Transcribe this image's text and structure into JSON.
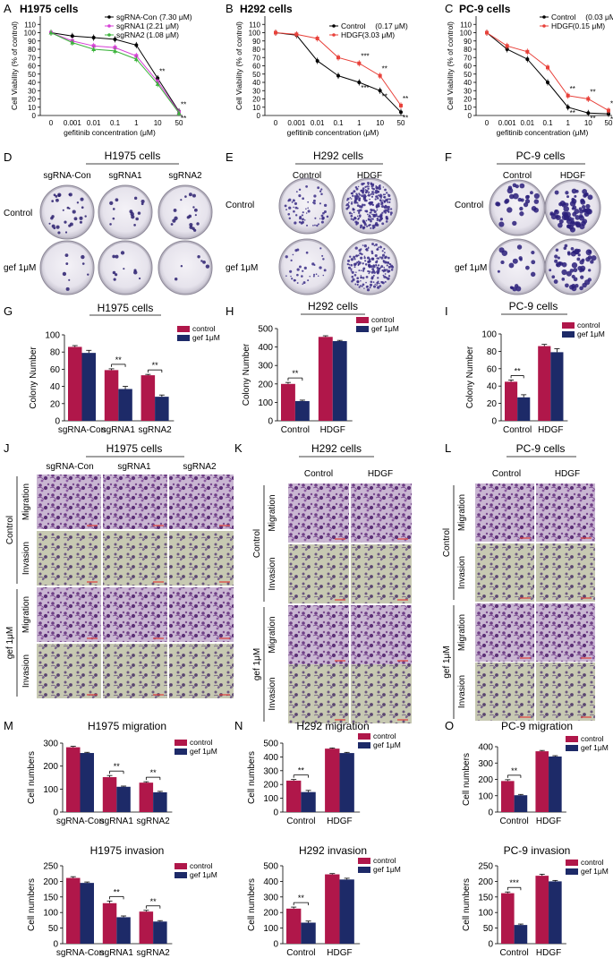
{
  "figure": {
    "panels": {
      "A": {
        "letter": "A",
        "title": "H1975 cells"
      },
      "B": {
        "letter": "B",
        "title": "H292 cells"
      },
      "C": {
        "letter": "C",
        "title": "PC-9 cells"
      },
      "D": {
        "letter": "D",
        "title": "H1975 cells",
        "cols": [
          "sgRNA-Con",
          "sgRNA1",
          "sgRNA2"
        ],
        "rows": [
          "Control",
          "gef 1μM"
        ]
      },
      "E": {
        "letter": "E",
        "title": "H292 cells",
        "cols": [
          "Control",
          "HDGF"
        ],
        "rows": [
          "Control",
          "gef 1μM"
        ]
      },
      "F": {
        "letter": "F",
        "title": "PC-9 cells",
        "cols": [
          "Control",
          "HDGF"
        ],
        "rows": [
          "Control",
          "gef 1μM"
        ]
      },
      "G": {
        "letter": "G",
        "title": "H1975 cells"
      },
      "H": {
        "letter": "H",
        "title": "H292 cells"
      },
      "I": {
        "letter": "I",
        "title": "PC-9 cells"
      },
      "J": {
        "letter": "J",
        "title": "H1975 cells",
        "cols": [
          "sgRNA-Con",
          "sgRNA1",
          "sgRNA2"
        ]
      },
      "K": {
        "letter": "K",
        "title": "H292 cells",
        "cols": [
          "Control",
          "HDGF"
        ]
      },
      "L": {
        "letter": "L",
        "title": "PC-9 cells",
        "cols": [
          "Control",
          "HDGF"
        ]
      },
      "M": {
        "letter": "M",
        "title": "H1975 migration"
      },
      "M2": {
        "title": "H1975 invasion"
      },
      "N": {
        "letter": "N",
        "title": "H292 migration"
      },
      "N2": {
        "title": "H292 invasion"
      },
      "O": {
        "letter": "O",
        "title": "PC-9 migration"
      },
      "O2": {
        "title": "PC-9 invasion"
      }
    },
    "transwell_labels": {
      "group_control": "Control",
      "group_gef": "gef 1μM",
      "migration": "Migration",
      "invasion": "Invasion"
    },
    "colors": {
      "control_bar": "#b0174a",
      "gef_bar": "#1d2a68",
      "hdgf_line": "#e8413a",
      "pink_series": "#d63fd6",
      "green_series": "#3cb43c"
    }
  },
  "chart_data": [
    {
      "id": "A",
      "type": "line",
      "ylabel": "Cell Viability (% of control)",
      "xlabel": "gefitinib concentration (μM)",
      "x_ticks": [
        "0",
        "0.001",
        "0.01",
        "0.1",
        "1",
        "10",
        "50"
      ],
      "ylim": [
        0,
        120
      ],
      "y_ticks": [
        0,
        10,
        20,
        30,
        40,
        50,
        60,
        70,
        80,
        90,
        100,
        110
      ],
      "series": [
        {
          "name": "sgRNA-Con",
          "ic50": "(7.30 μM)",
          "color": "#000000",
          "marker": "circle",
          "values": [
            100,
            96,
            94,
            92,
            85,
            45,
            5
          ]
        },
        {
          "name": "sgRNA1",
          "ic50": "(2.21 μM)",
          "color": "#d63fd6",
          "marker": "square",
          "values": [
            100,
            90,
            84,
            82,
            72,
            41,
            4
          ]
        },
        {
          "name": "sgRNA2",
          "ic50": "(1.08 μM)",
          "color": "#3cb43c",
          "marker": "triangle",
          "values": [
            100,
            88,
            80,
            78,
            68,
            38,
            3
          ]
        }
      ],
      "annotations": [
        "**",
        "**",
        "**"
      ]
    },
    {
      "id": "B",
      "type": "line",
      "ylabel": "Cell Viability (% of control)",
      "xlabel": "gefitinib concentration (μM)",
      "x_ticks": [
        "0",
        "0.001",
        "0.01",
        "0.1",
        "1",
        "10",
        "50"
      ],
      "ylim": [
        0,
        120
      ],
      "y_ticks": [
        0,
        10,
        20,
        30,
        40,
        50,
        60,
        70,
        80,
        90,
        100,
        110
      ],
      "series": [
        {
          "name": "Control",
          "ic50": "(0.17 μM)",
          "color": "#000000",
          "marker": "circle",
          "values": [
            100,
            97,
            66,
            48,
            40,
            30,
            4
          ]
        },
        {
          "name": "HDGF",
          "ic50": "(3.03 μM)",
          "color": "#e8413a",
          "marker": "square",
          "values": [
            100,
            98,
            93,
            70,
            63,
            48,
            12
          ]
        }
      ],
      "annotations": [
        "**",
        "**",
        "**",
        "**",
        "***",
        "***"
      ]
    },
    {
      "id": "C",
      "type": "line",
      "ylabel": "Cell Viability (% of control)",
      "xlabel": "gefitinib concentration (μM)",
      "x_ticks": [
        "0",
        "0.001",
        "0.01",
        "0.1",
        "1",
        "10",
        "50"
      ],
      "ylim": [
        0,
        120
      ],
      "y_ticks": [
        0,
        10,
        20,
        30,
        40,
        50,
        60,
        70,
        80,
        90,
        100,
        110
      ],
      "series": [
        {
          "name": "Control",
          "ic50": "(0.03 μM)",
          "color": "#000000",
          "marker": "circle",
          "values": [
            100,
            80,
            68,
            40,
            10,
            3,
            2
          ]
        },
        {
          "name": "HDGF",
          "ic50": "(0.15 μM)",
          "color": "#e8413a",
          "marker": "square",
          "values": [
            100,
            84,
            77,
            58,
            24,
            20,
            6
          ]
        }
      ],
      "annotations": [
        "*",
        "**",
        "**",
        "**",
        "**",
        "**"
      ]
    },
    {
      "id": "G",
      "type": "bar",
      "ylabel": "Colony Number",
      "categories": [
        "sgRNA-Con",
        "sgRNA1",
        "sgRNA2"
      ],
      "ylim": [
        0,
        100
      ],
      "y_ticks": [
        0,
        20,
        40,
        60,
        80,
        100
      ],
      "series": [
        {
          "name": "control",
          "values": [
            86,
            59,
            53
          ],
          "err": [
            1.5,
            1.5,
            1
          ]
        },
        {
          "name": "gef 1μM",
          "values": [
            79,
            37,
            28
          ],
          "err": [
            3,
            3,
            2
          ]
        }
      ],
      "sig": [
        "",
        "**",
        "**"
      ]
    },
    {
      "id": "H",
      "type": "bar",
      "ylabel": "Colony Number",
      "categories": [
        "Control",
        "HDGF"
      ],
      "ylim": [
        0,
        500
      ],
      "y_ticks": [
        0,
        100,
        200,
        300,
        400,
        500
      ],
      "series": [
        {
          "name": "control",
          "values": [
            200,
            455
          ],
          "err": [
            8,
            6
          ]
        },
        {
          "name": "gef 1μM",
          "values": [
            107,
            432
          ],
          "err": [
            5,
            4
          ]
        }
      ],
      "sig": [
        "**",
        ""
      ]
    },
    {
      "id": "I",
      "type": "bar",
      "ylabel": "Colony Number",
      "categories": [
        "Control",
        "HDGF"
      ],
      "ylim": [
        0,
        100
      ],
      "y_ticks": [
        0,
        20,
        40,
        60,
        80,
        100
      ],
      "series": [
        {
          "name": "control",
          "values": [
            45,
            86
          ],
          "err": [
            2,
            2
          ]
        },
        {
          "name": "gef 1μM",
          "values": [
            27,
            79
          ],
          "err": [
            3,
            4
          ]
        }
      ],
      "sig": [
        "**",
        ""
      ]
    },
    {
      "id": "M",
      "type": "bar",
      "ylabel": "Cell numbers",
      "categories": [
        "sgRNA-Con",
        "sgRNA1",
        "sgRNA2"
      ],
      "ylim": [
        0,
        300
      ],
      "y_ticks": [
        0,
        100,
        200,
        300
      ],
      "series": [
        {
          "name": "control",
          "values": [
            282,
            152,
            128
          ],
          "err": [
            4,
            7,
            4
          ]
        },
        {
          "name": "gef 1μM",
          "values": [
            257,
            110,
            86
          ],
          "err": [
            3,
            3,
            4
          ]
        }
      ],
      "sig": [
        "",
        "**",
        "**"
      ]
    },
    {
      "id": "M2",
      "type": "bar",
      "ylabel": "Cell numbers",
      "categories": [
        "sgRNA-Con",
        "sgRNA1",
        "sgRNA2"
      ],
      "ylim": [
        0,
        250
      ],
      "y_ticks": [
        0,
        50,
        100,
        150,
        200,
        250
      ],
      "series": [
        {
          "name": "control",
          "values": [
            211,
            130,
            103
          ],
          "err": [
            4,
            7,
            4
          ]
        },
        {
          "name": "gef 1μM",
          "values": [
            195,
            85,
            71
          ],
          "err": [
            3,
            4,
            3
          ]
        }
      ],
      "sig": [
        "",
        "**",
        "**"
      ]
    },
    {
      "id": "N",
      "type": "bar",
      "ylabel": "Cell numbers",
      "categories": [
        "Control",
        "HDGF"
      ],
      "ylim": [
        0,
        500
      ],
      "y_ticks": [
        0,
        100,
        200,
        300,
        400,
        500
      ],
      "series": [
        {
          "name": "control",
          "values": [
            228,
            460
          ],
          "err": [
            8,
            5
          ]
        },
        {
          "name": "gef 1μM",
          "values": [
            145,
            428
          ],
          "err": [
            12,
            5
          ]
        }
      ],
      "sig": [
        "**",
        ""
      ]
    },
    {
      "id": "N2",
      "type": "bar",
      "ylabel": "Cell numbers",
      "categories": [
        "Control",
        "HDGF"
      ],
      "ylim": [
        0,
        500
      ],
      "y_ticks": [
        0,
        100,
        200,
        300,
        400,
        500
      ],
      "series": [
        {
          "name": "control",
          "values": [
            225,
            445
          ],
          "err": [
            10,
            5
          ]
        },
        {
          "name": "gef 1μM",
          "values": [
            135,
            412
          ],
          "err": [
            10,
            8
          ]
        }
      ],
      "sig": [
        "**",
        ""
      ]
    },
    {
      "id": "O",
      "type": "bar",
      "ylabel": "Cell numbers",
      "categories": [
        "Control",
        "HDGF"
      ],
      "ylim": [
        0,
        400
      ],
      "y_ticks": [
        0,
        100,
        200,
        300,
        400
      ],
      "series": [
        {
          "name": "control",
          "values": [
            190,
            372
          ],
          "err": [
            8,
            5
          ]
        },
        {
          "name": "gef 1μM",
          "values": [
            103,
            340
          ],
          "err": [
            5,
            5
          ]
        }
      ],
      "sig": [
        "**",
        ""
      ]
    },
    {
      "id": "O2",
      "type": "bar",
      "ylabel": "Cell numbers",
      "categories": [
        "Control",
        "HDGF"
      ],
      "ylim": [
        0,
        250
      ],
      "y_ticks": [
        0,
        50,
        100,
        150,
        200,
        250
      ],
      "series": [
        {
          "name": "control",
          "values": [
            162,
            218
          ],
          "err": [
            4,
            5
          ]
        },
        {
          "name": "gef 1μM",
          "values": [
            60,
            200
          ],
          "err": [
            3,
            3
          ]
        }
      ],
      "sig": [
        "***",
        ""
      ]
    }
  ]
}
